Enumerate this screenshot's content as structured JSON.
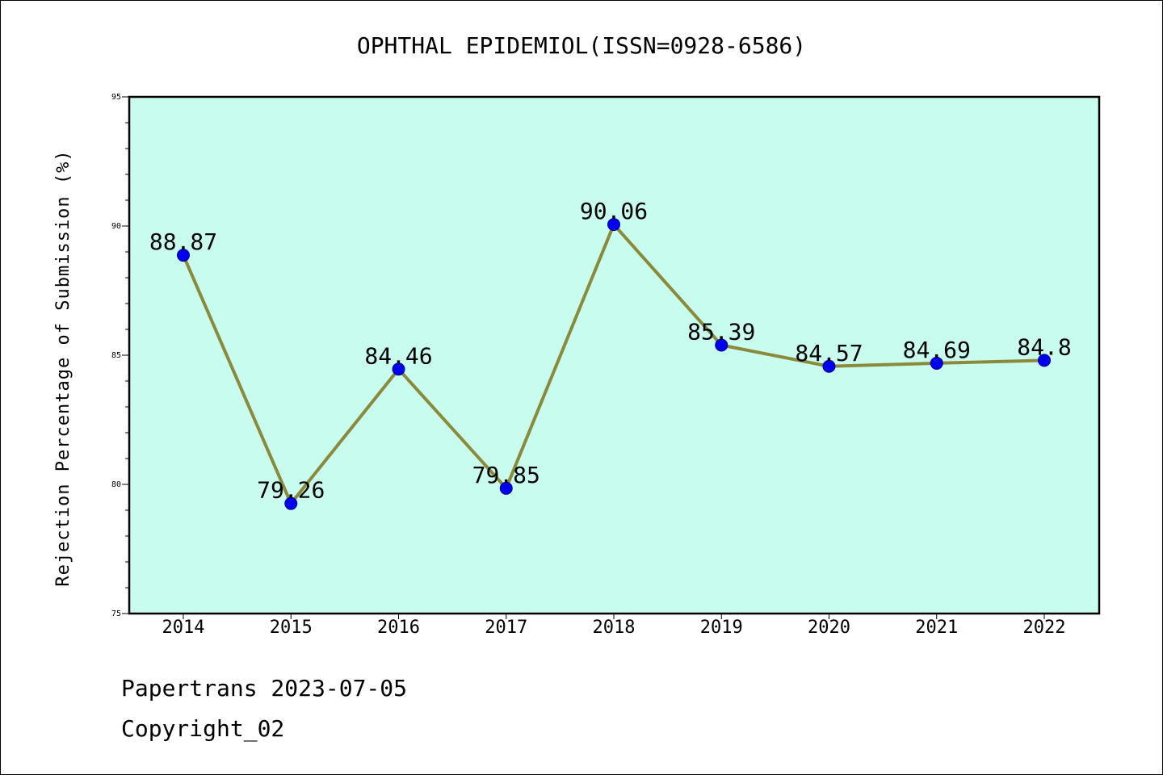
{
  "chart_data": {
    "type": "line",
    "title": "OPHTHAL EPIDEMIOL(ISSN=0928-6586)",
    "ylabel": "Rejection Percentage of Submission (%)",
    "xlabel": "",
    "categories": [
      "2014",
      "2015",
      "2016",
      "2017",
      "2018",
      "2019",
      "2020",
      "2021",
      "2022"
    ],
    "values": [
      88.87,
      79.26,
      84.46,
      79.85,
      90.06,
      85.39,
      84.57,
      84.69,
      84.8
    ],
    "data_labels": [
      "88.87",
      "79.26",
      "84.46",
      "79.85",
      "90.06",
      "85.39",
      "84.57",
      "84.69",
      "84.8"
    ],
    "ylim": [
      75,
      95
    ],
    "yticks": [
      75,
      80,
      85,
      90,
      95
    ],
    "grid": false,
    "colors": {
      "plot_background": "#c8fcee",
      "line": "#8b8a3a",
      "marker": "#0000ee",
      "axis": "#000000"
    }
  },
  "footer": {
    "source": "Papertrans 2023-07-05",
    "copyright": "Copyright_02"
  }
}
